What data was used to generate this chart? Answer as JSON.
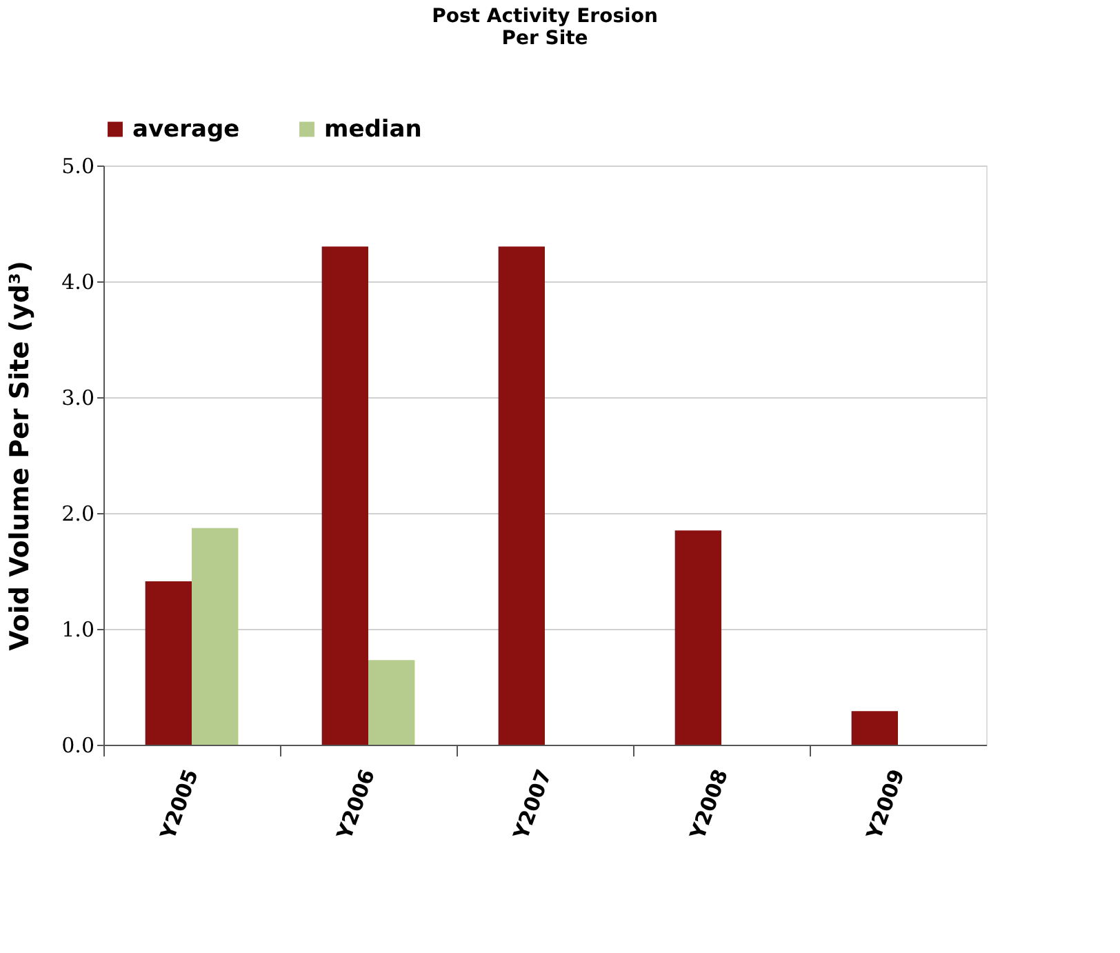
{
  "chart_data": {
    "type": "bar",
    "title": [
      "Post Activity Erosion",
      "Per Site"
    ],
    "ylabel": "Void Volume Per Site (yd³)",
    "categories": [
      "Y2005",
      "Y2006",
      "Y2007",
      "Y2008",
      "Y2009"
    ],
    "series": [
      {
        "name": "average",
        "color": "#8b1010",
        "values": [
          1.41,
          4.3,
          4.3,
          1.85,
          0.29
        ]
      },
      {
        "name": "median",
        "color": "#b5cc8e",
        "values": [
          1.87,
          0.73,
          null,
          null,
          null
        ]
      }
    ],
    "ylim": [
      0,
      5
    ],
    "yticks": [
      {
        "value": 0,
        "label": "0.0"
      },
      {
        "value": 1,
        "label": "1.0"
      },
      {
        "value": 2,
        "label": "2.0"
      },
      {
        "value": 3,
        "label": "3.0"
      },
      {
        "value": 4,
        "label": "4.0"
      },
      {
        "value": 5,
        "label": "5.0"
      }
    ],
    "grid": "y",
    "legend": "top"
  }
}
